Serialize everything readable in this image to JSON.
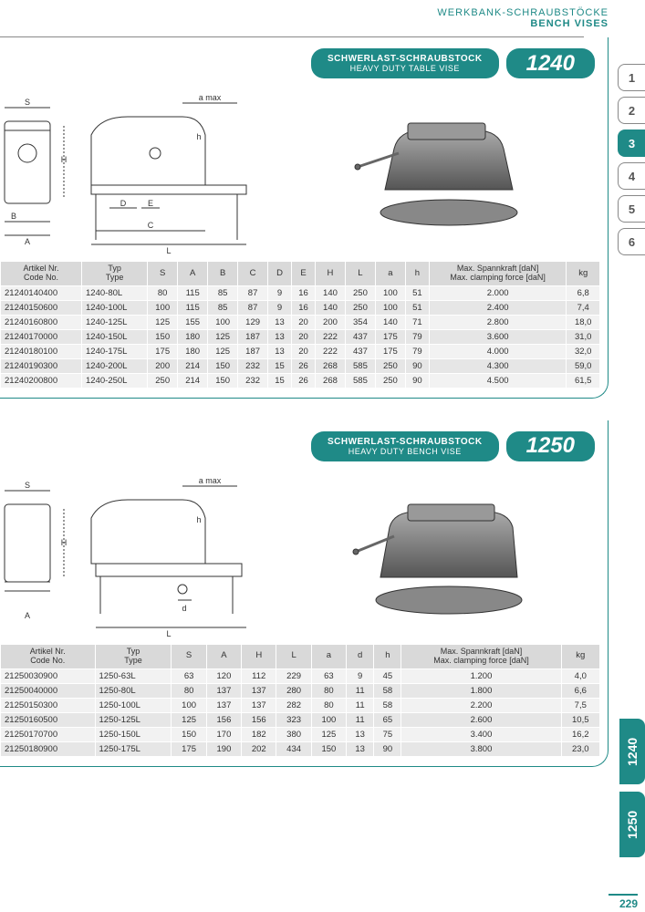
{
  "header": {
    "line1": "WERKBANK-SCHRAUBSTÖCKE",
    "line2": "BENCH VISES"
  },
  "page_num": "229",
  "side_tabs": [
    "1",
    "2",
    "3",
    "4",
    "5",
    "6"
  ],
  "active_tab": "3",
  "bottom_tabs": [
    "1240",
    "1250"
  ],
  "colors": {
    "teal": "#1f8a87",
    "grey1": "#d9d9d9",
    "grey2": "#e6e6e6",
    "grey3": "#f2f2f2"
  },
  "card1": {
    "title_de": "SCHWERLAST-SCHRAUBSTOCK",
    "title_en": "HEAVY DUTY TABLE VISE",
    "num": "1240",
    "drawing_labels": {
      "amax": "a max",
      "S": "S",
      "H": "H",
      "B": "B",
      "A": "A",
      "D": "D",
      "E": "E",
      "C": "C",
      "L": "L",
      "h": "h"
    },
    "columns": [
      {
        "de": "Artikel Nr.",
        "en": "Code No."
      },
      {
        "de": "Typ",
        "en": "Type"
      },
      {
        "label": "S"
      },
      {
        "label": "A"
      },
      {
        "label": "B"
      },
      {
        "label": "C"
      },
      {
        "label": "D"
      },
      {
        "label": "E"
      },
      {
        "label": "H"
      },
      {
        "label": "L"
      },
      {
        "label": "a"
      },
      {
        "label": "h"
      },
      {
        "de": "Max. Spannkraft [daN]",
        "en": "Max. clamping force [daN]"
      },
      {
        "label": "kg"
      }
    ],
    "rows": [
      [
        "21240140400",
        "1240-80L",
        "80",
        "115",
        "85",
        "87",
        "9",
        "16",
        "140",
        "250",
        "100",
        "51",
        "2.000",
        "6,8"
      ],
      [
        "21240150600",
        "1240-100L",
        "100",
        "115",
        "85",
        "87",
        "9",
        "16",
        "140",
        "250",
        "100",
        "51",
        "2.400",
        "7,4"
      ],
      [
        "21240160800",
        "1240-125L",
        "125",
        "155",
        "100",
        "129",
        "13",
        "20",
        "200",
        "354",
        "140",
        "71",
        "2.800",
        "18,0"
      ],
      [
        "21240170000",
        "1240-150L",
        "150",
        "180",
        "125",
        "187",
        "13",
        "20",
        "222",
        "437",
        "175",
        "79",
        "3.600",
        "31,0"
      ],
      [
        "21240180100",
        "1240-175L",
        "175",
        "180",
        "125",
        "187",
        "13",
        "20",
        "222",
        "437",
        "175",
        "79",
        "4.000",
        "32,0"
      ],
      [
        "21240190300",
        "1240-200L",
        "200",
        "214",
        "150",
        "232",
        "15",
        "26",
        "268",
        "585",
        "250",
        "90",
        "4.300",
        "59,0"
      ],
      [
        "21240200800",
        "1240-250L",
        "250",
        "214",
        "150",
        "232",
        "15",
        "26",
        "268",
        "585",
        "250",
        "90",
        "4.500",
        "61,5"
      ]
    ]
  },
  "card2": {
    "title_de": "SCHWERLAST-SCHRAUBSTOCK",
    "title_en": "HEAVY DUTY BENCH VISE",
    "num": "1250",
    "drawing_labels": {
      "amax": "a max",
      "S": "S",
      "H": "H",
      "A": "A",
      "d": "d",
      "L": "L",
      "h": "h"
    },
    "columns": [
      {
        "de": "Artikel Nr.",
        "en": "Code No."
      },
      {
        "de": "Typ",
        "en": "Type"
      },
      {
        "label": "S"
      },
      {
        "label": "A"
      },
      {
        "label": "H"
      },
      {
        "label": "L"
      },
      {
        "label": "a"
      },
      {
        "label": "d"
      },
      {
        "label": "h"
      },
      {
        "de": "Max. Spannkraft [daN]",
        "en": "Max. clamping force [daN]"
      },
      {
        "label": "kg"
      }
    ],
    "rows": [
      [
        "21250030900",
        "1250-63L",
        "63",
        "120",
        "112",
        "229",
        "63",
        "9",
        "45",
        "1.200",
        "4,0"
      ],
      [
        "21250040000",
        "1250-80L",
        "80",
        "137",
        "137",
        "280",
        "80",
        "11",
        "58",
        "1.800",
        "6,6"
      ],
      [
        "21250150300",
        "1250-100L",
        "100",
        "137",
        "137",
        "282",
        "80",
        "11",
        "58",
        "2.200",
        "7,5"
      ],
      [
        "21250160500",
        "1250-125L",
        "125",
        "156",
        "156",
        "323",
        "100",
        "11",
        "65",
        "2.600",
        "10,5"
      ],
      [
        "21250170700",
        "1250-150L",
        "150",
        "170",
        "182",
        "380",
        "125",
        "13",
        "75",
        "3.400",
        "16,2"
      ],
      [
        "21250180900",
        "1250-175L",
        "175",
        "190",
        "202",
        "434",
        "150",
        "13",
        "90",
        "3.800",
        "23,0"
      ]
    ]
  }
}
